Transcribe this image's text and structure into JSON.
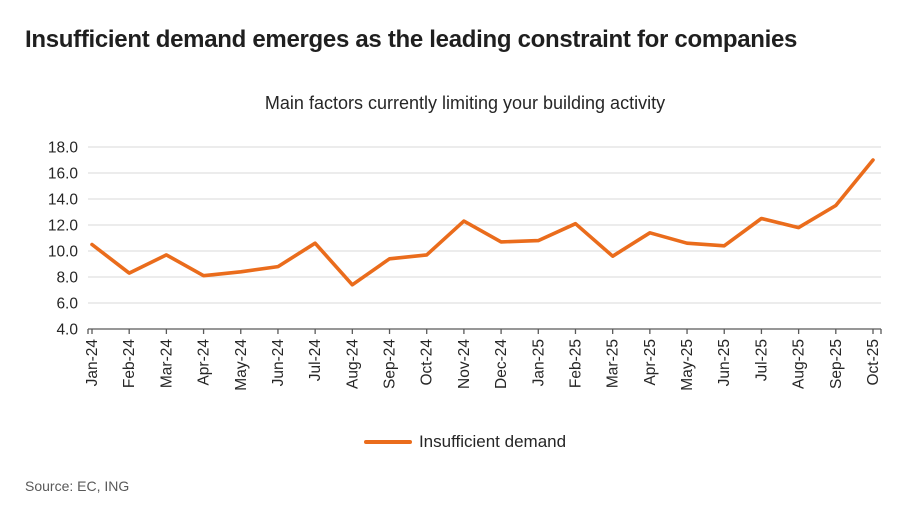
{
  "page": {
    "title": "Insufficient demand emerges as the leading constraint for companies",
    "source": "Source: EC, ING"
  },
  "chart_data": {
    "type": "line",
    "title": "Main factors currently limiting your building activity",
    "categories": [
      "Jan-24",
      "Feb-24",
      "Mar-24",
      "Apr-24",
      "May-24",
      "Jun-24",
      "Jul-24",
      "Aug-24",
      "Sep-24",
      "Oct-24",
      "Nov-24",
      "Dec-24",
      "Jan-25",
      "Feb-25",
      "Mar-25",
      "Apr-25",
      "May-25",
      "Jun-25",
      "Jul-25",
      "Aug-25",
      "Sep-25",
      "Oct-25"
    ],
    "series": [
      {
        "name": "Insufficient demand",
        "color": "#ea6c1c",
        "values": [
          10.5,
          8.3,
          9.7,
          8.1,
          8.4,
          8.8,
          10.6,
          7.4,
          9.4,
          9.7,
          12.3,
          10.7,
          10.8,
          12.1,
          9.6,
          11.4,
          10.6,
          10.4,
          12.5,
          11.8,
          13.5,
          17.0
        ]
      }
    ],
    "xlabel": "",
    "ylabel": "",
    "ylim": [
      4.0,
      18.0
    ],
    "ytick_step": 2.0,
    "ytick_decimals": 1,
    "grid": true,
    "gridline_color": "#d9d9d9",
    "axis_color": "#595959",
    "tick_label_color": "#262626",
    "legend_position": "bottom"
  }
}
